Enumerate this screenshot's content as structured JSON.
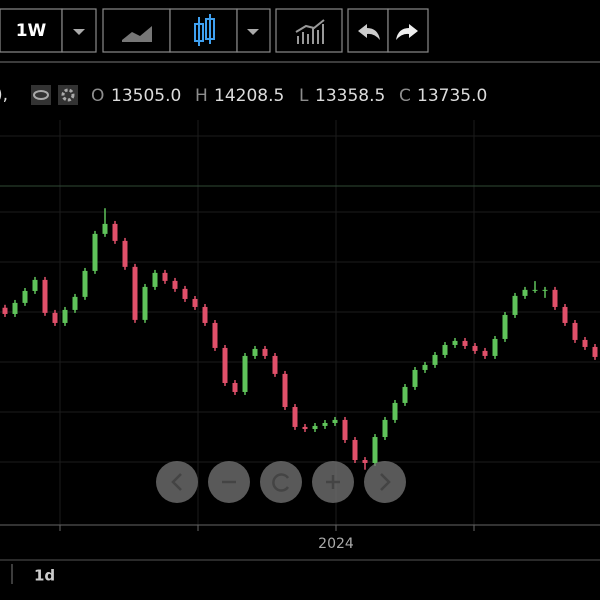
{
  "toolbar": {
    "interval": "1W"
  },
  "legend": {
    "prefix": "),",
    "o_label": "O",
    "o": "13505.0",
    "h_label": "H",
    "h": "14208.5",
    "l_label": "L",
    "l": "13358.5",
    "c_label": "C",
    "c": "13735.0"
  },
  "time_axis_label": "2024",
  "footer": {
    "range": "1d"
  },
  "chart_data": {
    "type": "candlestick",
    "ylim": [
      11000,
      15000
    ],
    "up_color": "#5fc35a",
    "down_color": "#e0506a",
    "candles": [
      [
        13200,
        13230,
        13107,
        13137
      ],
      [
        13137,
        13279,
        13107,
        13249
      ],
      [
        13249,
        13400,
        13219,
        13370
      ],
      [
        13370,
        13512,
        13340,
        13482
      ],
      [
        13482,
        13512,
        13118,
        13148
      ],
      [
        13148,
        13178,
        13016,
        13046
      ],
      [
        13046,
        13208,
        13016,
        13178
      ],
      [
        13178,
        13340,
        13148,
        13310
      ],
      [
        13310,
        13603,
        13280,
        13573
      ],
      [
        13573,
        13978,
        13543,
        13948
      ],
      [
        13948,
        14208,
        13918,
        14049
      ],
      [
        14049,
        14079,
        13847,
        13877
      ],
      [
        13877,
        13907,
        13584,
        13614
      ],
      [
        13614,
        13644,
        13047,
        13077
      ],
      [
        13077,
        13441,
        13047,
        13411
      ],
      [
        13411,
        13583,
        13381,
        13553
      ],
      [
        13553,
        13583,
        13442,
        13472
      ],
      [
        13472,
        13502,
        13361,
        13391
      ],
      [
        13391,
        13421,
        13259,
        13289
      ],
      [
        13289,
        13319,
        13178,
        13208
      ],
      [
        13208,
        13238,
        13016,
        13046
      ],
      [
        13046,
        13076,
        12763,
        12793
      ],
      [
        12793,
        12823,
        12408,
        12438
      ],
      [
        12438,
        12468,
        12317,
        12347
      ],
      [
        12347,
        12742,
        12317,
        12712
      ],
      [
        12712,
        12813,
        12682,
        12783
      ],
      [
        12783,
        12813,
        12682,
        12712
      ],
      [
        12712,
        12742,
        12500,
        12530
      ],
      [
        12530,
        12560,
        12165,
        12195
      ],
      [
        12195,
        12225,
        11963,
        11993
      ],
      [
        11993,
        12023,
        11942,
        11972
      ],
      [
        11972,
        12033,
        11942,
        12003
      ],
      [
        12003,
        12063,
        11973,
        12033
      ],
      [
        12033,
        12094,
        12003,
        12064
      ],
      [
        12064,
        12094,
        11831,
        11861
      ],
      [
        11861,
        11891,
        11628,
        11658
      ],
      [
        11658,
        11688,
        11560,
        11628
      ],
      [
        11628,
        11921,
        11598,
        11891
      ],
      [
        11891,
        12094,
        11861,
        12064
      ],
      [
        12064,
        12266,
        12034,
        12236
      ],
      [
        12236,
        12428,
        12206,
        12398
      ],
      [
        12398,
        12600,
        12368,
        12570
      ],
      [
        12570,
        12651,
        12540,
        12621
      ],
      [
        12621,
        12752,
        12591,
        12722
      ],
      [
        12722,
        12853,
        12692,
        12823
      ],
      [
        12823,
        12894,
        12793,
        12864
      ],
      [
        12864,
        12894,
        12783,
        12813
      ],
      [
        12813,
        12843,
        12733,
        12763
      ],
      [
        12763,
        12793,
        12682,
        12712
      ],
      [
        12712,
        12914,
        12682,
        12884
      ],
      [
        12884,
        13157,
        12854,
        13127
      ],
      [
        13127,
        13350,
        13097,
        13320
      ],
      [
        13320,
        13411,
        13290,
        13381
      ],
      [
        13381,
        13470,
        13351,
        13381
      ],
      [
        13381,
        13411,
        13300,
        13381
      ],
      [
        13381,
        13411,
        13178,
        13208
      ],
      [
        13208,
        13238,
        13016,
        13046
      ],
      [
        13046,
        13076,
        12844,
        12874
      ],
      [
        12874,
        12904,
        12773,
        12803
      ],
      [
        12803,
        12833,
        12672,
        12702
      ]
    ]
  }
}
